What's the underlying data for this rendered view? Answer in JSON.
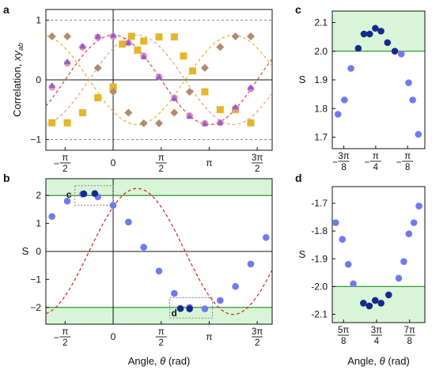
{
  "chart_data": [
    {
      "panel": "a",
      "type": "scatter",
      "ylabel": "Correlation, xy_ab",
      "ylabel_main": "Correlation, ",
      "ylabel_var": "xy",
      "ylabel_sub": "ab",
      "xlabel": "",
      "xlim": [
        -2.2,
        5.2
      ],
      "ylim": [
        -1.18,
        1.18
      ],
      "xticks": [
        {
          "x": -1.5708,
          "num": "π",
          "den": "2",
          "neg": true
        },
        {
          "x": 0,
          "label": "0"
        },
        {
          "x": 1.5708,
          "num": "π",
          "den": "2"
        },
        {
          "x": 3.1416,
          "label": "π"
        },
        {
          "x": 4.7124,
          "num": "3π",
          "den": "2"
        }
      ],
      "yticks": [
        -1,
        0,
        1
      ],
      "ytick_labels": [
        "−1",
        "0",
        "1"
      ],
      "grid": false,
      "series": [
        {
          "marker": "square",
          "color": "#E3B62A",
          "fit": {
            "amp": 0.75,
            "phase": -2.356,
            "color": "#E3B62A"
          },
          "x": [
            -2.0,
            -1.5,
            -1.0,
            -0.5,
            0.0,
            0.3,
            0.6,
            0.8,
            1.0,
            1.5,
            2.0,
            2.3,
            2.6,
            3.0,
            3.5,
            4.0,
            4.5
          ],
          "y": [
            -0.72,
            -0.72,
            -0.55,
            -0.3,
            -0.12,
            0.6,
            0.73,
            0.5,
            0.65,
            0.72,
            0.72,
            0.4,
            0.15,
            -0.2,
            -0.5,
            -0.5,
            -0.72
          ]
        },
        {
          "marker": "diamond",
          "color": "#B38A6E",
          "fit": {
            "amp": 0.75,
            "phase": 0.785,
            "color": "#D9A88A"
          },
          "x": [
            -2.0,
            -1.5,
            -1.0,
            -0.5,
            0.0,
            0.5,
            1.0,
            1.5,
            2.0,
            2.5,
            3.0,
            3.5,
            4.0,
            4.5
          ],
          "y": [
            0.73,
            0.73,
            0.55,
            0.2,
            -0.2,
            -0.55,
            -0.73,
            -0.73,
            -0.55,
            -0.2,
            0.2,
            0.55,
            0.73,
            0.73
          ]
        },
        {
          "marker": "circle",
          "color": "#E98AB0",
          "fit": {
            "amp": 0.75,
            "phase": 0.0,
            "color": "#D8444A"
          },
          "x": [
            -2.0,
            -1.5,
            -1.0,
            -0.5,
            0.0,
            0.5,
            1.0,
            1.5,
            2.0,
            2.5,
            3.0,
            3.5,
            4.0,
            4.5
          ],
          "y": [
            -0.12,
            0.28,
            0.55,
            0.72,
            0.73,
            0.62,
            0.4,
            0.05,
            -0.3,
            -0.6,
            -0.73,
            -0.72,
            -0.48,
            -0.15
          ]
        },
        {
          "marker": "triangle",
          "color": "#8C5FD0",
          "x": [
            -2.0,
            -1.5,
            -1.0,
            -0.5,
            0.0,
            0.5,
            1.0,
            1.5,
            2.0,
            2.5,
            3.0,
            3.5,
            4.0,
            4.5
          ],
          "y": [
            -0.1,
            0.3,
            0.56,
            0.72,
            0.74,
            0.62,
            0.38,
            0.04,
            -0.32,
            -0.62,
            -0.74,
            -0.72,
            -0.46,
            -0.13
          ]
        }
      ]
    },
    {
      "panel": "b",
      "type": "scatter",
      "xlabel": "Angle, θ (rad)",
      "xlabel_main": "Angle, ",
      "xlabel_var": "θ",
      "xlabel_unit": " (rad)",
      "ylabel": "S",
      "xlim": [
        -2.2,
        5.2
      ],
      "ylim": [
        -2.6,
        2.6
      ],
      "yticks": [
        -2,
        -1,
        0,
        1,
        2
      ],
      "ytick_labels": [
        "−2",
        "−1",
        "0",
        "1",
        "2"
      ],
      "xticks": [
        {
          "x": -1.5708,
          "num": "π",
          "den": "2",
          "neg": true
        },
        {
          "x": 0,
          "label": "0"
        },
        {
          "x": 1.5708,
          "num": "π",
          "den": "2"
        },
        {
          "x": 3.1416,
          "label": "π"
        },
        {
          "x": 4.7124,
          "num": "3π",
          "den": "2"
        }
      ],
      "classical_bound": 2,
      "fit": {
        "amp": 2.25,
        "phase": 0.785,
        "color": "#CC2222"
      },
      "points": {
        "x": [
          -2.0,
          -1.5,
          -1.0,
          -0.5,
          0.0,
          0.5,
          1.0,
          1.5,
          2.0,
          2.5,
          3.0,
          3.5,
          4.0,
          4.5,
          5.0
        ],
        "y": [
          1.25,
          1.8,
          2.05,
          1.95,
          1.65,
          1.05,
          0.15,
          -0.7,
          -1.5,
          -2.0,
          -2.05,
          -1.75,
          -1.25,
          -0.45,
          0.5
        ],
        "color": "#6E7BF0"
      },
      "highlighted": {
        "x": [
          -0.96,
          -0.6,
          2.2,
          2.5
        ],
        "y": [
          2.06,
          2.07,
          -2.04,
          -2.05
        ],
        "color": "#152A8C"
      },
      "zoom_boxes": [
        {
          "label": "c",
          "x": [
            -1.25,
            0.0
          ],
          "y": [
            1.65,
            2.35
          ]
        },
        {
          "label": "d",
          "x": [
            1.85,
            3.25
          ],
          "y": [
            -2.38,
            -1.65
          ]
        }
      ]
    },
    {
      "panel": "c",
      "type": "scatter",
      "ylabel": "S",
      "xlim": [
        -1.32,
        -0.18
      ],
      "ylim": [
        1.66,
        2.14
      ],
      "yticks": [
        1.7,
        1.8,
        1.9,
        2.0,
        2.1
      ],
      "ytick_labels": [
        "1.7",
        "1.8",
        "1.9",
        "2.0",
        "2.1"
      ],
      "xticks": [
        {
          "x": -1.1781,
          "num": "3π",
          "den": "8",
          "neg": true
        },
        {
          "x": -0.7854,
          "num": "π",
          "den": "4",
          "neg": true
        },
        {
          "x": -0.3927,
          "num": "π",
          "den": "8",
          "neg": true
        }
      ],
      "classical_bound": 2.0,
      "points": {
        "x": [
          -1.25,
          -1.17,
          -1.09,
          -0.47,
          -0.38,
          -0.33,
          -0.26
        ],
        "y": [
          1.78,
          1.83,
          1.94,
          1.99,
          1.89,
          1.83,
          1.71
        ],
        "color": "#6E7BF0"
      },
      "highlighted": {
        "x": [
          -1.0,
          -0.93,
          -0.86,
          -0.79,
          -0.72,
          -0.64,
          -0.55
        ],
        "y": [
          2.01,
          2.06,
          2.06,
          2.08,
          2.07,
          2.03,
          2.0
        ],
        "color": "#152A8C"
      }
    },
    {
      "panel": "d",
      "type": "scatter",
      "xlabel": "Angle, θ (rad)",
      "xlabel_main": "Angle, ",
      "xlabel_var": "θ",
      "xlabel_unit": " (rad)",
      "ylabel": "S",
      "xlim": [
        1.83,
        2.93
      ],
      "ylim": [
        -2.13,
        -1.64
      ],
      "yticks": [
        -1.7,
        -1.8,
        -1.9,
        -2.0,
        -2.1
      ],
      "ytick_labels": [
        "-1.7",
        "-1.8",
        "-1.9",
        "-2.0",
        "-2.1"
      ],
      "xticks": [
        {
          "x": 1.9635,
          "num": "5π",
          "den": "8"
        },
        {
          "x": 2.3562,
          "num": "3π",
          "den": "4"
        },
        {
          "x": 2.7489,
          "num": "7π",
          "den": "8"
        }
      ],
      "classical_bound": -2.0,
      "points": {
        "x": [
          1.87,
          1.95,
          2.02,
          2.08,
          2.62,
          2.68,
          2.74,
          2.8,
          2.86
        ],
        "y": [
          -1.77,
          -1.83,
          -1.92,
          -1.99,
          -1.97,
          -1.91,
          -1.81,
          -1.77,
          -1.71
        ],
        "color": "#6E7BF0"
      },
      "highlighted": {
        "x": [
          2.2,
          2.27,
          2.34,
          2.41,
          2.5
        ],
        "y": [
          -2.06,
          -2.07,
          -2.05,
          -2.06,
          -2.03
        ],
        "color": "#152A8C"
      }
    }
  ]
}
